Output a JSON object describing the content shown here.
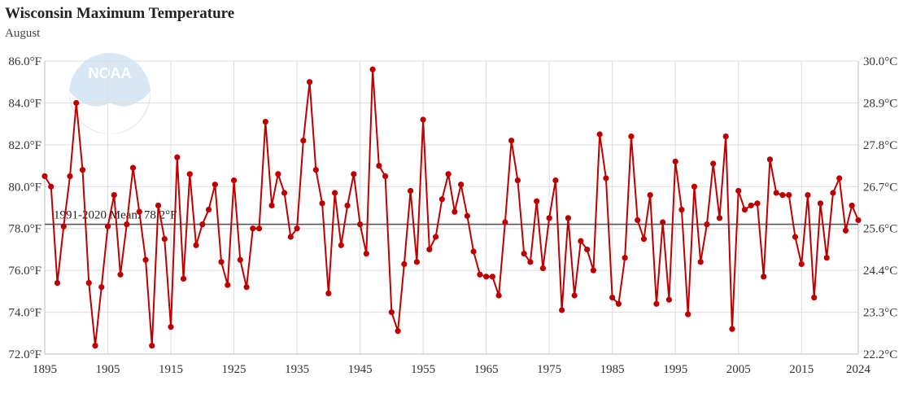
{
  "title": "Wisconsin Maximum Temperature",
  "subtitle": "August",
  "colors": {
    "series": "#c00000",
    "mean_line": "#555555",
    "grid": "#dddddd",
    "logo": "#d6e9f5"
  },
  "chart_data": {
    "type": "line",
    "title": "Wisconsin Maximum Temperature",
    "subtitle": "August",
    "xlim": [
      1895,
      2024
    ],
    "ylim": [
      72,
      86
    ],
    "x_ticks": [
      1895,
      1905,
      1915,
      1925,
      1935,
      1945,
      1955,
      1965,
      1975,
      1985,
      1995,
      2005,
      2015,
      2024
    ],
    "y_ticks_left": [
      "72.0°F",
      "74.0°F",
      "76.0°F",
      "78.0°F",
      "80.0°F",
      "82.0°F",
      "84.0°F",
      "86.0°F"
    ],
    "y_ticks_right": [
      "22.2°C",
      "23.3°C",
      "24.4°C",
      "25.6°C",
      "26.7°C",
      "27.8°C",
      "28.9°C",
      "30.0°C"
    ],
    "grid": true,
    "mean": {
      "value": 78.2,
      "label": "1991-2020 Mean: 78.2°F"
    },
    "x_start": 1895,
    "series": [
      {
        "values": [
          80.5,
          80.0,
          75.4,
          78.1,
          80.5,
          84.0,
          80.8,
          75.4,
          72.4,
          75.2,
          78.1,
          79.6,
          75.8,
          78.2,
          80.9,
          78.8,
          76.5,
          72.4,
          79.1,
          77.5,
          73.3,
          81.4,
          75.6,
          80.6,
          77.2,
          78.2,
          78.9,
          80.1,
          76.4,
          75.3,
          80.3,
          76.5,
          75.2,
          78.0,
          78.0,
          83.1,
          79.1,
          80.6,
          79.7,
          77.6,
          78.0,
          82.2,
          85.0,
          80.8,
          79.2,
          74.9,
          79.7,
          77.2,
          79.1,
          80.6,
          78.2,
          76.8,
          85.6,
          81.0,
          80.5,
          74.0,
          73.1,
          76.3,
          79.8,
          76.4,
          83.2,
          77.0,
          77.6,
          79.4,
          80.6,
          78.8,
          80.1,
          78.6,
          76.9,
          75.8,
          75.7,
          75.7,
          74.8,
          78.3,
          82.2,
          80.3,
          76.8,
          76.4,
          79.3,
          76.1,
          78.5,
          80.3,
          74.1,
          78.5,
          74.8,
          77.4,
          77.0,
          76.0,
          82.5,
          80.4,
          74.7,
          74.4,
          76.6,
          82.4,
          78.4,
          77.5,
          79.6,
          74.4,
          78.3,
          74.6,
          81.2,
          78.9,
          73.9,
          80.0,
          76.4,
          78.2,
          81.1,
          78.5,
          82.4,
          73.2,
          79.8,
          78.9,
          79.1,
          79.2,
          75.7,
          81.3,
          79.7,
          79.6,
          79.6,
          77.6,
          76.3,
          79.6,
          74.7,
          79.2,
          76.6,
          79.7,
          80.4,
          77.9,
          79.1,
          78.4
        ]
      }
    ]
  }
}
